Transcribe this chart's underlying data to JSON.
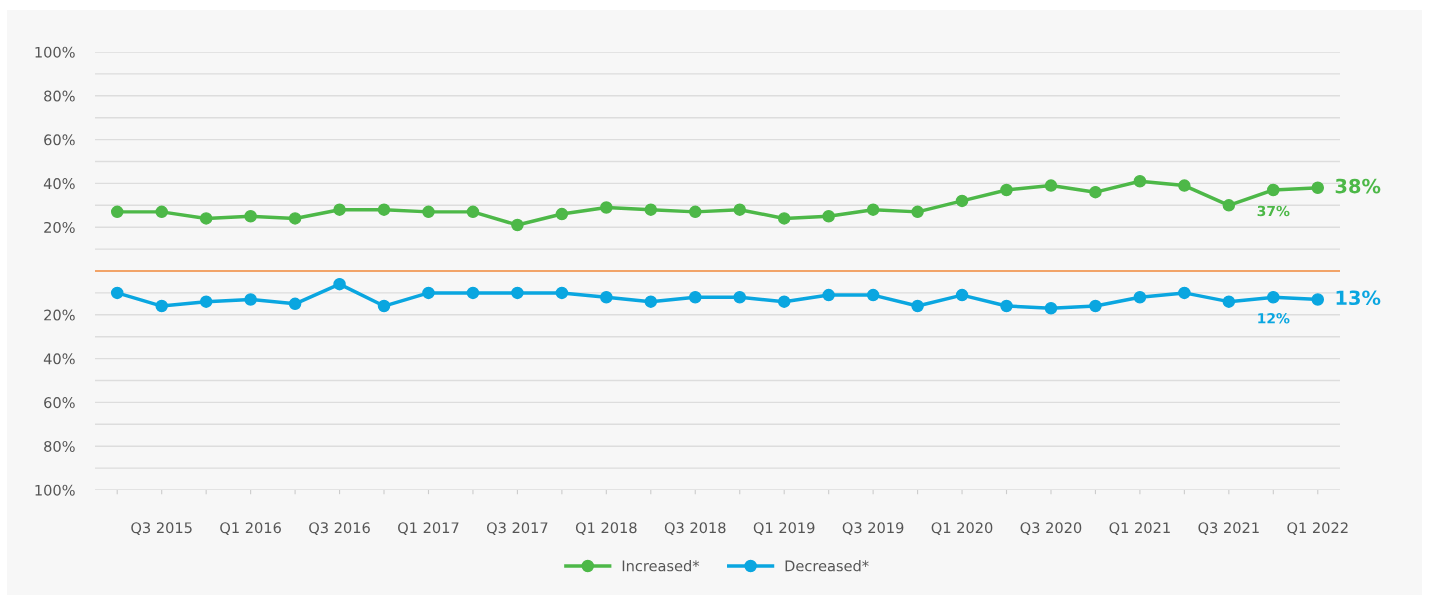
{
  "chart_data": {
    "type": "line",
    "categories": [
      null,
      "Q3 2015",
      null,
      "Q1 2016",
      null,
      "Q3 2016",
      null,
      "Q1 2017",
      null,
      "Q3 2017",
      null,
      "Q1 2018",
      null,
      "Q3 2018",
      null,
      "Q1 2019",
      null,
      "Q3 2019",
      null,
      "Q1 2020",
      null,
      "Q3 2020",
      null,
      "Q1 2021",
      null,
      "Q3 2021",
      null,
      "Q1 2022"
    ],
    "series": [
      {
        "name": "Increased*",
        "color": "#4db848",
        "values": [
          27,
          27,
          24,
          25,
          24,
          28,
          28,
          27,
          27,
          21,
          26,
          29,
          28,
          27,
          28,
          24,
          25,
          28,
          27,
          32,
          37,
          39,
          36,
          41,
          39,
          30,
          37,
          38
        ],
        "value_labels": [
          null,
          null,
          null,
          null,
          null,
          null,
          null,
          null,
          null,
          null,
          null,
          null,
          null,
          null,
          null,
          null,
          null,
          null,
          null,
          null,
          null,
          null,
          null,
          null,
          null,
          null,
          "37%",
          "38%"
        ]
      },
      {
        "name": "Decreased*",
        "color": "#0aa6e0",
        "axis": "y2",
        "values": [
          10,
          16,
          14,
          13,
          15,
          6,
          16,
          10,
          10,
          10,
          10,
          12,
          14,
          12,
          12,
          14,
          11,
          11,
          16,
          11,
          16,
          17,
          16,
          12,
          10,
          14,
          12,
          13
        ],
        "value_labels": [
          null,
          null,
          null,
          null,
          null,
          null,
          null,
          null,
          null,
          null,
          null,
          null,
          null,
          null,
          null,
          null,
          null,
          null,
          null,
          null,
          null,
          null,
          null,
          null,
          null,
          null,
          "12%",
          "13%"
        ]
      }
    ],
    "ylim": [
      -100,
      100
    ],
    "y2lim": [
      100,
      -100
    ],
    "y2ticks": [
      {
        "value": 100,
        "label": "100%"
      },
      {
        "value": 90,
        "label": null
      },
      {
        "value": 80,
        "label": "80%"
      },
      {
        "value": 70,
        "label": null
      },
      {
        "value": 60,
        "label": "60%"
      },
      {
        "value": 50,
        "label": null
      },
      {
        "value": 40,
        "label": "40%"
      },
      {
        "value": 30,
        "label": null
      },
      {
        "value": 20,
        "label": "20%"
      },
      {
        "value": 10,
        "label": null
      }
    ],
    "yticks": [
      {
        "value": 10,
        "label": null
      },
      {
        "value": 20,
        "label": "20%"
      },
      {
        "value": 30,
        "label": null
      },
      {
        "value": 40,
        "label": "40%"
      },
      {
        "value": 50,
        "label": null
      },
      {
        "value": 60,
        "label": "60%"
      },
      {
        "value": 70,
        "label": null
      },
      {
        "value": 80,
        "label": "80%"
      },
      {
        "value": 90,
        "label": null
      },
      {
        "value": 100,
        "label": "100%"
      }
    ],
    "ref_lines": [
      {
        "axis": "y",
        "value": 0,
        "color": "#f0883a"
      }
    ],
    "grid": "y",
    "legend": "bottom",
    "marker": "circle",
    "line_style": "solid"
  }
}
